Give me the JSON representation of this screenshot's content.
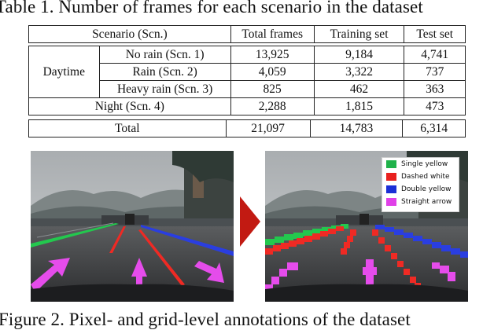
{
  "table": {
    "caption": "Table 1. Number of frames for each scenario in the dataset",
    "headers": [
      "Scenario (Scn.)",
      "Total frames",
      "Training set",
      "Test set"
    ],
    "group_label": "Daytime",
    "rows": [
      {
        "scenario": "No rain (Scn. 1)",
        "total": "13,925",
        "train": "9,184",
        "test": "4,741"
      },
      {
        "scenario": "Rain (Scn. 2)",
        "total": "4,059",
        "train": "3,322",
        "test": "737"
      },
      {
        "scenario": "Heavy rain (Scn. 3)",
        "total": "825",
        "train": "462",
        "test": "363"
      },
      {
        "scenario": "Night (Scn. 4)",
        "total": "2,288",
        "train": "1,815",
        "test": "473"
      }
    ],
    "total_row": {
      "label": "Total",
      "total": "21,097",
      "train": "14,783",
      "test": "6,314"
    }
  },
  "figure": {
    "caption": "Figure 2. Pixel- and grid-level annotations of the dataset",
    "legend": [
      {
        "label": "Single yellow",
        "color": "#1fb24a"
      },
      {
        "label": "Dashed white",
        "color": "#e8201e"
      },
      {
        "label": "Double yellow",
        "color": "#1b2fd6"
      },
      {
        "label": "Straight arrow",
        "color": "#e040e8"
      }
    ],
    "arrow_color": "#c21a12"
  }
}
